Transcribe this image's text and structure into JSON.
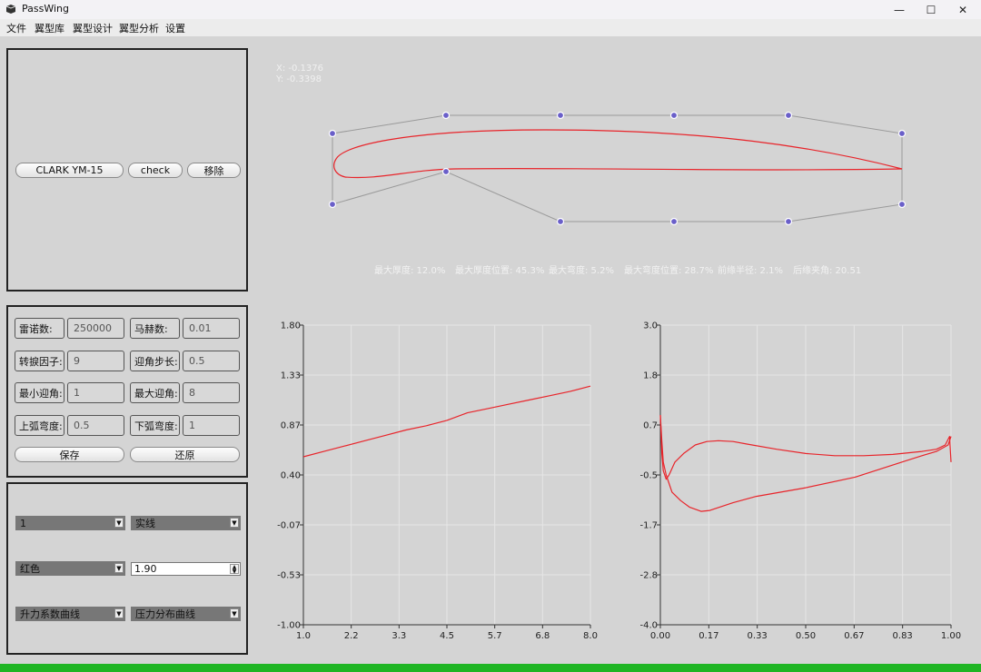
{
  "window": {
    "title": "PassWing",
    "icon": "app-logo-icon",
    "minimize": "—",
    "maximize": "☐",
    "close": "✕"
  },
  "menu": [
    "文件",
    "翼型库",
    "翼型设计",
    "翼型分析",
    "设置"
  ],
  "airfoil_panel": {
    "name_button": "CLARK YM-15",
    "check_button": "check",
    "remove_button": "移除"
  },
  "params": {
    "rows": [
      {
        "l1": "雷诺数:",
        "v1": "250000",
        "l2": "马赫数:",
        "v2": "0.01"
      },
      {
        "l1": "转捩因子:",
        "v1": "9",
        "l2": "迎角步长:",
        "v2": "0.5"
      },
      {
        "l1": "最小迎角:",
        "v1": "1",
        "l2": "最大迎角:",
        "v2": "8"
      },
      {
        "l1": "上弧弯度:",
        "v1": "0.5",
        "l2": "下弧弯度:",
        "v2": "1"
      }
    ],
    "save_button": "保存",
    "restore_button": "还原"
  },
  "style_panel": {
    "combo1": "1",
    "combo2": "实线",
    "combo3": "红色",
    "spin_value": "1.90",
    "combo4": "升力系数曲线",
    "combo5": "压力分布曲线"
  },
  "readout": {
    "x": "X: -0.1376",
    "y": "Y: -0.3398"
  },
  "stats": {
    "max_thickness": "最大厚度: 12.0%",
    "max_thickness_pos": "最大厚度位置: 45.3%",
    "max_camber": "最大弯度: 5.2%",
    "max_camber_pos": "最大弯度位置: 28.7%",
    "le_radius": "前缘半径: 2.1%",
    "te_angle": "后缘夹角: 20.51"
  },
  "colors": {
    "curve": "#e8242a",
    "control_point": "#6a5fc9",
    "status_bar": "#1fb524"
  },
  "chart_data": [
    {
      "type": "line",
      "xticks": [
        "1.0",
        "2.2",
        "3.3",
        "4.5",
        "5.7",
        "6.8",
        "8.0"
      ],
      "yticks": [
        "1.80",
        "1.33",
        "0.87",
        "0.40",
        "-0.07",
        "-0.53",
        "-1.00"
      ],
      "xlim": [
        1.0,
        8.0
      ],
      "ylim": [
        -1.0,
        1.8
      ],
      "grid": true,
      "series": [
        {
          "x": [
            1.0,
            1.5,
            2.0,
            2.5,
            3.0,
            3.5,
            4.0,
            4.5,
            5.0,
            5.5,
            6.0,
            6.5,
            7.0,
            7.5,
            8.0
          ],
          "values": [
            0.57,
            0.62,
            0.67,
            0.72,
            0.77,
            0.82,
            0.86,
            0.91,
            0.98,
            1.02,
            1.06,
            1.1,
            1.14,
            1.18,
            1.23
          ]
        }
      ]
    },
    {
      "type": "line",
      "xticks": [
        "0.00",
        "0.17",
        "0.33",
        "0.50",
        "0.67",
        "0.83",
        "1.00"
      ],
      "yticks": [
        "3.0",
        "1.8",
        "0.7",
        "-0.5",
        "-1.7",
        "-2.8",
        "-4.0"
      ],
      "xlim": [
        0.0,
        1.0
      ],
      "ylim": [
        -4.0,
        3.0
      ],
      "grid": true,
      "series": [
        {
          "x": [
            0.0,
            0.005,
            0.01,
            0.02,
            0.03,
            0.05,
            0.08,
            0.12,
            0.16,
            0.2,
            0.25,
            0.3,
            0.4,
            0.5,
            0.6,
            0.7,
            0.8,
            0.9,
            0.95,
            0.98,
            0.995,
            1.0
          ],
          "values": [
            0.9,
            0.0,
            -0.4,
            -0.6,
            -0.5,
            -0.2,
            0.0,
            0.2,
            0.28,
            0.3,
            0.28,
            0.22,
            0.1,
            0.0,
            -0.05,
            -0.05,
            -0.02,
            0.05,
            0.1,
            0.2,
            0.4,
            -0.2
          ]
        },
        {
          "x": [
            0.0,
            0.005,
            0.01,
            0.02,
            0.04,
            0.07,
            0.1,
            0.14,
            0.17,
            0.25,
            0.33,
            0.5,
            0.67,
            0.83,
            0.9,
            0.95,
            0.99,
            1.0
          ],
          "values": [
            0.9,
            0.3,
            -0.2,
            -0.5,
            -0.9,
            -1.1,
            -1.25,
            -1.35,
            -1.33,
            -1.15,
            -1.0,
            -0.8,
            -0.55,
            -0.2,
            -0.05,
            0.05,
            0.2,
            0.4
          ]
        }
      ]
    }
  ]
}
